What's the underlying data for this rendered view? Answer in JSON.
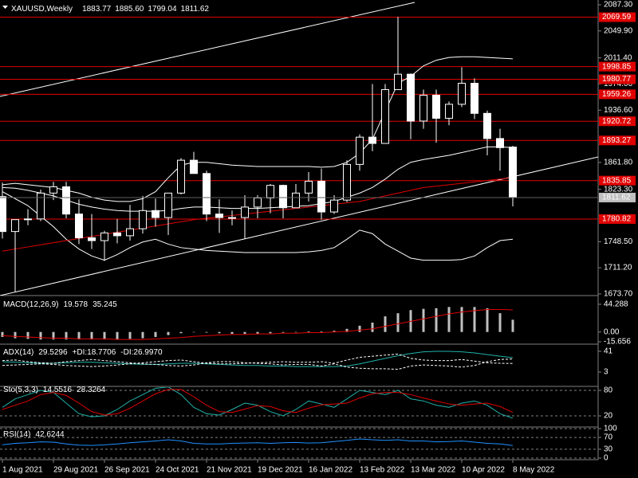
{
  "chart_data": [
    {
      "type": "candlestick",
      "label": "XAUUSD,Weekly",
      "readout": [
        1883.77,
        {
          "value": 1885.6,
          "label": "1885.60"
        },
        1799.04,
        1811.62
      ],
      "categories": [
        "1 Aug 2021",
        null,
        null,
        null,
        "29 Aug 2021",
        null,
        null,
        null,
        "26 Sep 2021",
        null,
        null,
        null,
        "24 Oct 2021",
        null,
        null,
        null,
        "21 Nov 2021",
        null,
        null,
        null,
        "19 Dec 2021",
        null,
        null,
        null,
        "16 Jan 2022",
        null,
        null,
        null,
        "13 Feb 2022",
        null,
        null,
        null,
        "13 Mar 2022",
        null,
        null,
        null,
        "10 Apr 2022",
        null,
        null,
        null,
        "8 May 2022"
      ],
      "open": [
        1813,
        1763,
        1780,
        1781,
        1818,
        1827,
        1788,
        1754,
        1750,
        1761,
        1757,
        1767,
        1793,
        1783,
        1818,
        1865,
        1846,
        1788,
        1783,
        1783,
        1798,
        1811,
        1829,
        1797,
        1818,
        1835,
        1791,
        1808,
        1859,
        1898,
        1889,
        1966,
        1988,
        1921,
        1958,
        1925,
        1945,
        1975,
        1932,
        1896,
        1883.77
      ],
      "high": [
        1833,
        1780,
        1795,
        1823,
        1834,
        1834,
        1809,
        1788,
        1764,
        1781,
        1801,
        1814,
        1810,
        1818,
        1868,
        1877,
        1850,
        1809,
        1793,
        1815,
        1815,
        1831,
        1830,
        1831,
        1848,
        1853,
        1815,
        1865,
        1902,
        1974,
        1974,
        2070,
        1989,
        1966,
        1966,
        1949,
        1998,
        1982,
        1936,
        1910,
        1885.6
      ],
      "low": [
        1753,
        1677,
        1772,
        1778,
        1808,
        1782,
        1745,
        1738,
        1721,
        1746,
        1750,
        1760,
        1770,
        1758,
        1816,
        1847,
        1778,
        1761,
        1772,
        1753,
        1782,
        1789,
        1782,
        1797,
        1806,
        1780,
        1788,
        1805,
        1850,
        1878,
        1889,
        1966,
        1895,
        1910,
        1890,
        1915,
        1941,
        1924,
        1872,
        1850,
        1799.04
      ],
      "close": [
        1763,
        1780,
        1781,
        1818,
        1827,
        1788,
        1754,
        1750,
        1761,
        1757,
        1767,
        1793,
        1783,
        1818,
        1865,
        1846,
        1788,
        1783,
        1783,
        1798,
        1811,
        1829,
        1797,
        1818,
        1835,
        1791,
        1808,
        1859,
        1898,
        1889,
        1966,
        1988,
        1921,
        1958,
        1925,
        1945,
        1975,
        1932,
        1896,
        1883,
        1811.62
      ],
      "up_color": "#000000",
      "down_color": "#ffffff",
      "wick_color": "#ffffff",
      "overlays": [
        {
          "color": "#ffffff",
          "values": [
            1830,
            1832,
            1830,
            1828,
            1826,
            1822,
            1818,
            1812,
            1808,
            1806,
            1806,
            1810,
            1820,
            1840,
            1858,
            1862,
            1862,
            1860,
            1858,
            1857,
            1856,
            1856,
            1856,
            1856,
            1856,
            1855,
            1856,
            1862,
            1875,
            1895,
            1935,
            1975,
            1985,
            2000,
            2008,
            2012,
            2013,
            2013,
            2012,
            2011,
            2010
          ]
        },
        {
          "color": "#ffffff",
          "values": [
            1826,
            1825,
            1822,
            1818,
            1814,
            1808,
            1802,
            1798,
            1795,
            1793,
            1792,
            1792,
            1792,
            1793,
            1796,
            1798,
            1798,
            1797,
            1796,
            1796,
            1796,
            1797,
            1798,
            1799,
            1800,
            1803,
            1806,
            1812,
            1818,
            1826,
            1838,
            1852,
            1862,
            1866,
            1869,
            1872,
            1876,
            1880,
            1884,
            1884,
            1883
          ]
        },
        {
          "color": "#ffffff",
          "values": [
            1820,
            1810,
            1800,
            1785,
            1770,
            1752,
            1738,
            1728,
            1722,
            1730,
            1740,
            1748,
            1752,
            1745,
            1740,
            1738,
            1736,
            1735,
            1734,
            1733,
            1733,
            1733,
            1733,
            1733,
            1734,
            1736,
            1740,
            1752,
            1765,
            1760,
            1745,
            1735,
            1725,
            1722,
            1722,
            1722,
            1723,
            1728,
            1740,
            1750,
            1752
          ]
        },
        {
          "color": "#e00000",
          "values": [
            1735,
            1738,
            1741,
            1744,
            1747,
            1750,
            1753,
            1756,
            1759,
            1762,
            1765,
            1768,
            1771,
            1774,
            1777,
            1780,
            1782,
            1784,
            1786,
            1788,
            1790,
            1792,
            1794,
            1796,
            1798,
            1800,
            1802,
            1804,
            1806,
            1810,
            1814,
            1818,
            1822,
            1826,
            1828,
            1830,
            1832,
            1834,
            1836,
            1838,
            1840
          ]
        }
      ],
      "levels": [
        2069.59,
        1998.85,
        1980.77,
        1959.26,
        1920.72,
        1893.27,
        1835.85,
        1780.82
      ],
      "level_color": "#e00000",
      "ylim": [
        1673.7,
        2087.3
      ],
      "yticks": [
        {
          "value": 2087.3,
          "label": "2087.30"
        },
        {
          "value": 2049.9,
          "label": "2049.90"
        },
        {
          "value": 2011.4,
          "label": "2011.40"
        },
        {
          "value": 1974,
          "label": "1974.00"
        },
        {
          "value": 1936.6,
          "label": "1936.60"
        },
        {
          "value": 1861.8,
          "label": "1861.80"
        },
        {
          "value": 1823.3,
          "label": "1823.30"
        },
        {
          "value": 1748.5,
          "label": "1748.50"
        },
        {
          "value": 1711.2,
          "label": "1711.20"
        },
        {
          "value": 1673.7,
          "label": "1673.70"
        }
      ]
    },
    {
      "type": "indicator",
      "label": "MACD(12,26,9)",
      "series": [
        {
          "style": "bar",
          "color": "#c0c0c0",
          "readout": 19.578,
          "values": [
            -8,
            -10,
            -11,
            -12,
            -12,
            -12,
            -12,
            -12,
            -12,
            -12,
            -11,
            -10,
            -8,
            -5,
            -2,
            0,
            -1,
            -2,
            -3,
            -3,
            -3,
            -2,
            -1,
            0,
            1,
            1,
            2,
            5,
            10,
            15,
            25,
            30,
            35,
            37,
            38,
            40,
            40,
            40,
            38,
            30,
            19.578
          ]
        },
        {
          "style": "line",
          "color": "#e00000",
          "readout": 35.245,
          "values": [
            -6,
            -7,
            -8,
            -9,
            -10,
            -10,
            -11,
            -11,
            -11,
            -12,
            -12,
            -12,
            -11,
            -10,
            -9,
            -7,
            -6,
            -5,
            -4,
            -4,
            -3,
            -3,
            -2,
            -2,
            -1,
            -1,
            0,
            1,
            3,
            5,
            9,
            13,
            17,
            21,
            25,
            29,
            32,
            34,
            36,
            36,
            35.245
          ]
        }
      ],
      "ylim": [
        -15.656,
        55.7
      ],
      "yticks": [
        44.288,
        {
          "value": 0,
          "label": "0.00"
        },
        -15.656
      ],
      "grid": false
    },
    {
      "type": "indicator",
      "label": "ADX(14)",
      "series": [
        {
          "style": "line",
          "color": "#20b2aa",
          "readout": 29.5296,
          "values": [
            22,
            21,
            20,
            19,
            19,
            20,
            21,
            21,
            20,
            19,
            18,
            17,
            17,
            18,
            19,
            19,
            18,
            17,
            16,
            15,
            15,
            14,
            14,
            13,
            13,
            13,
            13,
            14,
            18,
            23,
            28,
            33,
            37,
            40,
            41,
            41,
            40,
            38,
            35,
            32,
            29.5296
          ]
        },
        {
          "style": "dashed",
          "color": "#ffffff",
          "name": "+DI:",
          "readout": 18.7706,
          "values": [
            15,
            16,
            17,
            18,
            17,
            15,
            14,
            13,
            14,
            16,
            18,
            20,
            22,
            24,
            25,
            22,
            19,
            18,
            18,
            19,
            20,
            21,
            22,
            21,
            21,
            22,
            19,
            25,
            30,
            32,
            34,
            36,
            28,
            25,
            24,
            24,
            26,
            23,
            20,
            19,
            18.7706
          ]
        },
        {
          "style": "dashed",
          "color": "#ffffff",
          "name": "-DI:",
          "readout": {
            "value": 26.997,
            "label": "26.9970"
          },
          "values": [
            24,
            25,
            22,
            20,
            19,
            22,
            24,
            26,
            24,
            22,
            20,
            18,
            17,
            15,
            14,
            16,
            20,
            22,
            22,
            20,
            19,
            18,
            16,
            17,
            17,
            14,
            18,
            12,
            10,
            9,
            9,
            8,
            14,
            16,
            15,
            14,
            12,
            15,
            22,
            26,
            26.997
          ]
        }
      ],
      "ylim": [
        -20.4,
        51.2
      ],
      "yticks": [
        41,
        3
      ],
      "grid": false
    },
    {
      "type": "indicator",
      "label": "Sto(5,3,3)",
      "series": [
        {
          "style": "line",
          "color": "#20b2aa",
          "readout": 14.5516,
          "values": [
            40,
            60,
            70,
            80,
            75,
            50,
            25,
            18,
            20,
            35,
            55,
            70,
            85,
            88,
            70,
            40,
            25,
            22,
            35,
            50,
            45,
            30,
            20,
            35,
            55,
            48,
            40,
            60,
            80,
            75,
            70,
            80,
            60,
            55,
            45,
            40,
            50,
            55,
            45,
            25,
            14.5516
          ]
        },
        {
          "style": "line",
          "color": "#e00000",
          "readout": 28.3264,
          "values": [
            35,
            45,
            55,
            70,
            75,
            68,
            50,
            30,
            22,
            25,
            38,
            55,
            72,
            82,
            82,
            65,
            45,
            30,
            28,
            36,
            44,
            42,
            32,
            28,
            38,
            46,
            48,
            50,
            62,
            72,
            75,
            75,
            70,
            62,
            55,
            48,
            45,
            48,
            50,
            42,
            28.3264
          ]
        }
      ],
      "ylim": [
        -0.6,
        85.6
      ],
      "yticks": [
        80,
        20
      ],
      "grid": true
    },
    {
      "type": "indicator",
      "label": "RSI(14)",
      "series": [
        {
          "style": "line",
          "color": "#1e90ff",
          "readout": 42.6244,
          "values": [
            45,
            50,
            52,
            55,
            54,
            48,
            44,
            43,
            45,
            48,
            52,
            55,
            58,
            62,
            58,
            50,
            48,
            48,
            50,
            51,
            52,
            50,
            52,
            53,
            51,
            52,
            56,
            60,
            65,
            62,
            60,
            62,
            58,
            58,
            55,
            56,
            58,
            54,
            50,
            48,
            42.6244
          ]
        }
      ],
      "ylim": [
        0,
        100
      ],
      "yticks": [
        100,
        70,
        30,
        0
      ],
      "grid": true
    }
  ]
}
